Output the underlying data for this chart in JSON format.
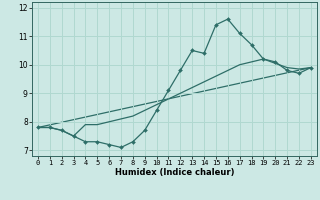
{
  "title": "",
  "xlabel": "Humidex (Indice chaleur)",
  "ylabel": "",
  "bg_color": "#cce8e4",
  "line_color": "#2e6e68",
  "grid_color": "#b0d8d0",
  "xlim": [
    -0.5,
    23.5
  ],
  "ylim": [
    6.8,
    12.2
  ],
  "xticks": [
    0,
    1,
    2,
    3,
    4,
    5,
    6,
    7,
    8,
    9,
    10,
    11,
    12,
    13,
    14,
    15,
    16,
    17,
    18,
    19,
    20,
    21,
    22,
    23
  ],
  "yticks": [
    7,
    8,
    9,
    10,
    11,
    12
  ],
  "series1_x": [
    0,
    1,
    2,
    3,
    4,
    5,
    6,
    7,
    8,
    9,
    10,
    11,
    12,
    13,
    14,
    15,
    16,
    17,
    18,
    19,
    20,
    21,
    22,
    23
  ],
  "series1_y": [
    7.8,
    7.8,
    7.7,
    7.5,
    7.3,
    7.3,
    7.2,
    7.1,
    7.3,
    7.7,
    8.4,
    9.1,
    9.8,
    10.5,
    10.4,
    11.4,
    11.6,
    11.1,
    10.7,
    10.2,
    10.1,
    9.8,
    9.7,
    9.9
  ],
  "series2_x": [
    0,
    1,
    2,
    3,
    4,
    5,
    6,
    7,
    8,
    9,
    10,
    11,
    12,
    13,
    14,
    15,
    16,
    17,
    18,
    19,
    20,
    21,
    22,
    23
  ],
  "series2_y": [
    7.8,
    7.8,
    7.7,
    7.5,
    7.9,
    7.9,
    8.0,
    8.1,
    8.2,
    8.4,
    8.6,
    8.8,
    9.0,
    9.2,
    9.4,
    9.6,
    9.8,
    10.0,
    10.1,
    10.2,
    10.05,
    9.9,
    9.85,
    9.9
  ],
  "series3_x": [
    0,
    23
  ],
  "series3_y": [
    7.8,
    9.9
  ],
  "tick_fontsize": 5.0,
  "xlabel_fontsize": 6.0,
  "marker_size": 2.0,
  "linewidth": 0.9
}
